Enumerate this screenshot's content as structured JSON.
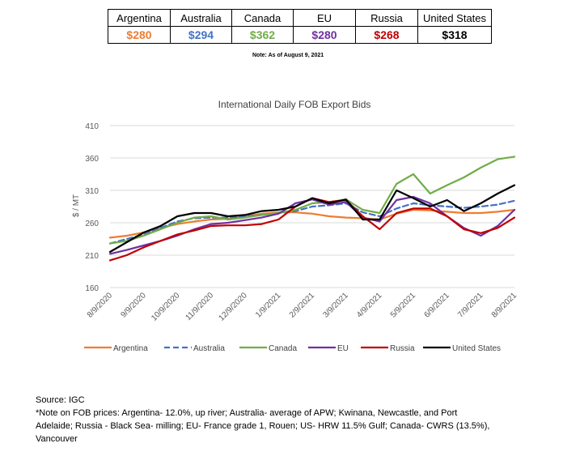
{
  "price_table": {
    "headers": [
      "Argentina",
      "Australia",
      "Canada",
      "EU",
      "Russia",
      "United States"
    ],
    "values": [
      "$280",
      "$294",
      "$362",
      "$280",
      "$268",
      "$318"
    ],
    "value_colors": [
      "#ED7D31",
      "#4472C4",
      "#70AD47",
      "#7030A0",
      "#C00000",
      "#000000"
    ],
    "note": "Note: As of August 9, 2021"
  },
  "chart_data": {
    "type": "line",
    "title": "International Daily FOB Export Bids",
    "ylabel": "$ / MT",
    "ylim": [
      160,
      410
    ],
    "yticks": [
      "410",
      "360",
      "310",
      "260",
      "210",
      "160"
    ],
    "x_tick_labels": [
      "8/9/2020",
      "9/9/2020",
      "10/9/2020",
      "11/9/2020",
      "12/9/2020",
      "1/9/2021",
      "2/9/2021",
      "3/9/2021",
      "4/9/2021",
      "5/9/2021",
      "6/9/2021",
      "7/9/2021",
      "8/9/2021"
    ],
    "x_unit": "months since 8/9/2020",
    "legend_position": "bottom",
    "series": [
      {
        "name": "Argentina",
        "color": "#ED7D31",
        "dash": "solid",
        "x": [
          0,
          0.5,
          1,
          1.5,
          2,
          2.5,
          3,
          3.5,
          4,
          4.5,
          5,
          5.5,
          6,
          6.5,
          7,
          7.5,
          8,
          8.5,
          9,
          9.5,
          10,
          10.5,
          11,
          11.5,
          12
        ],
        "y": [
          237,
          240,
          245,
          252,
          258,
          262,
          265,
          266,
          270,
          274,
          276,
          276,
          274,
          270,
          268,
          267,
          265,
          274,
          280,
          279,
          277,
          275,
          275,
          277,
          280
        ]
      },
      {
        "name": "Australia",
        "color": "#4472C4",
        "dash": "dashed",
        "x": [
          0,
          0.5,
          1,
          1.5,
          2,
          2.5,
          3,
          3.5,
          4,
          4.5,
          5,
          5.5,
          6,
          6.5,
          7,
          7.5,
          8,
          8.5,
          9,
          9.5,
          10,
          10.5,
          11,
          11.5,
          12
        ],
        "y": [
          228,
          235,
          242,
          252,
          262,
          267,
          268,
          268,
          270,
          272,
          275,
          278,
          285,
          287,
          290,
          276,
          270,
          282,
          290,
          287,
          285,
          283,
          285,
          288,
          294
        ]
      },
      {
        "name": "Canada",
        "color": "#70AD47",
        "dash": "solid",
        "x": [
          0,
          0.5,
          1,
          1.5,
          2,
          2.5,
          3,
          3.5,
          4,
          4.5,
          5,
          5.5,
          6,
          6.5,
          7,
          7.5,
          8,
          8.5,
          9,
          9.5,
          10,
          10.5,
          11,
          11.5,
          12
        ],
        "y": [
          228,
          232,
          240,
          250,
          260,
          268,
          270,
          265,
          268,
          272,
          275,
          280,
          290,
          292,
          296,
          280,
          275,
          320,
          335,
          305,
          318,
          330,
          345,
          358,
          362
        ]
      },
      {
        "name": "EU",
        "color": "#7030A0",
        "dash": "solid",
        "x": [
          0,
          0.5,
          1,
          1.5,
          2,
          2.5,
          3,
          3.5,
          4,
          4.5,
          5,
          5.5,
          6,
          6.5,
          7,
          7.5,
          8,
          8.5,
          9,
          9.5,
          10,
          10.5,
          11,
          11.5,
          12
        ],
        "y": [
          212,
          218,
          225,
          232,
          240,
          250,
          258,
          260,
          264,
          268,
          274,
          290,
          296,
          288,
          292,
          268,
          262,
          295,
          300,
          290,
          270,
          252,
          240,
          255,
          280
        ]
      },
      {
        "name": "Russia",
        "color": "#C00000",
        "dash": "solid",
        "x": [
          0,
          0.5,
          1,
          1.5,
          2,
          2.5,
          3,
          3.5,
          4,
          4.5,
          5,
          5.5,
          6,
          6.5,
          7,
          7.5,
          8,
          8.5,
          9,
          9.5,
          10,
          10.5,
          11,
          11.5,
          12
        ],
        "y": [
          202,
          210,
          222,
          232,
          242,
          248,
          255,
          256,
          256,
          258,
          265,
          285,
          298,
          292,
          295,
          270,
          250,
          275,
          282,
          282,
          270,
          250,
          244,
          252,
          268
        ]
      },
      {
        "name": "United States",
        "color": "#000000",
        "dash": "solid",
        "x": [
          0,
          0.5,
          1,
          1.5,
          2,
          2.5,
          3,
          3.5,
          4,
          4.5,
          5,
          5.5,
          6,
          6.5,
          7,
          7.5,
          8,
          8.5,
          9,
          9.5,
          10,
          10.5,
          11,
          11.5,
          12
        ],
        "y": [
          215,
          230,
          245,
          255,
          270,
          275,
          275,
          270,
          272,
          278,
          280,
          285,
          298,
          290,
          296,
          265,
          265,
          310,
          298,
          285,
          295,
          278,
          290,
          305,
          318
        ]
      }
    ]
  },
  "source": {
    "line1": "Source: IGC",
    "line2": "*Note on FOB prices: Argentina- 12.0%, up river; Australia- average of APW; Kwinana, Newcastle, and Port",
    "line3": "Adelaide; Russia - Black Sea- milling; EU- France grade 1, Rouen; US- HRW 11.5% Gulf; Canada- CWRS (13.5%),",
    "line4": "Vancouver"
  }
}
